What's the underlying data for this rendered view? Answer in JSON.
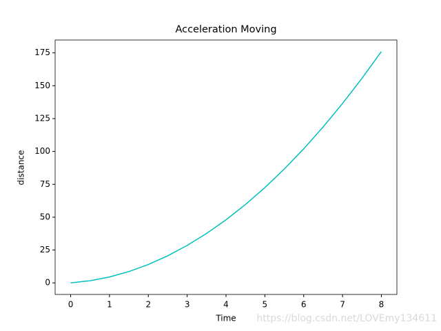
{
  "chart_data": {
    "type": "line",
    "title": "Acceleration Moving",
    "x_label": "Time",
    "y_label": "distance",
    "x": [
      0,
      0.5,
      1,
      1.5,
      2,
      2.5,
      3,
      3.5,
      4,
      4.5,
      5,
      5.5,
      6,
      6.5,
      7,
      7.5,
      8
    ],
    "series": [
      {
        "name": "distance",
        "color": "#00bfbf",
        "values": [
          0,
          1.625,
          4.5,
          8.625,
          14,
          20.625,
          28.5,
          37.625,
          48,
          59.625,
          72.5,
          86.625,
          102,
          118.625,
          136.5,
          155.625,
          176
        ]
      }
    ],
    "xlim": [
      -0.4,
      8.4
    ],
    "ylim": [
      -8.8,
      184.8
    ],
    "xticks": [
      0,
      1,
      2,
      3,
      4,
      5,
      6,
      7,
      8
    ],
    "yticks": [
      0,
      25,
      50,
      75,
      100,
      125,
      150,
      175
    ],
    "grid": false,
    "legend": false,
    "watermark": "https://blog.csdn.net/LOVEmy134611"
  }
}
